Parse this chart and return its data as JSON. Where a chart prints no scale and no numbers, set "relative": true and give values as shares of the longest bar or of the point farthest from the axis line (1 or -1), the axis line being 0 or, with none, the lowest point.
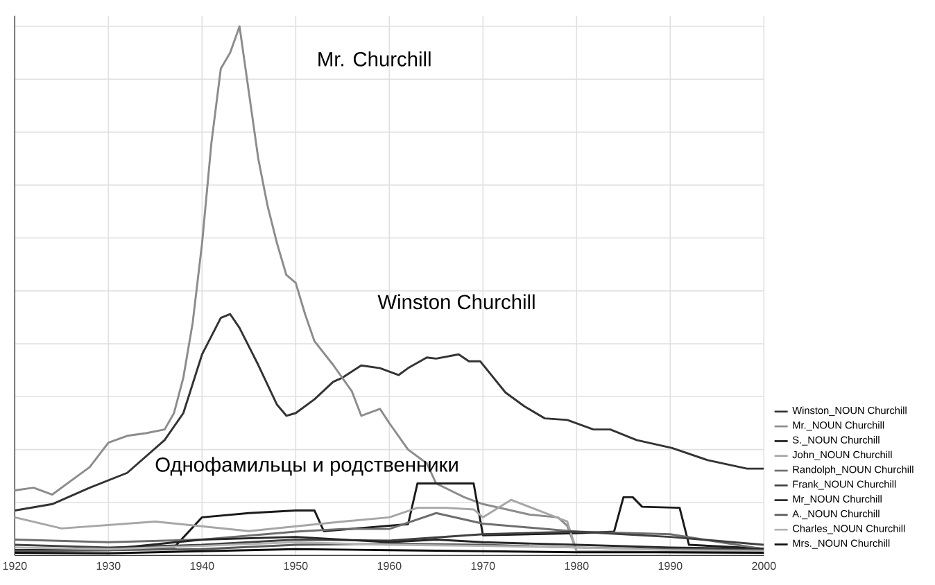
{
  "chart_data": {
    "type": "line",
    "relative": true,
    "xlim": [
      1920,
      2000
    ],
    "xticks": [
      1920,
      1930,
      1940,
      1950,
      1960,
      1970,
      1980,
      1990,
      2000
    ],
    "grid": true,
    "legend": "right",
    "tick_labels": "x",
    "line_style": "solid",
    "annotations": [
      "Mr. Churchill",
      "Winston Churchill",
      "Однофамильцы и родственники"
    ],
    "series": [
      {
        "name": "Winston_NOUN Churchill",
        "color": "#333333",
        "x": [
          1920,
          1924,
          1928,
          1932,
          1936,
          1938,
          1940,
          1942,
          1943,
          1944,
          1946,
          1948,
          1949,
          1950,
          1952,
          1954,
          1955,
          1957,
          1959,
          1961,
          1962,
          1964,
          1965,
          1967.4,
          1968.5,
          1969.7,
          1972.4,
          1974.4,
          1976.6,
          1979,
          1981.8,
          1983.6,
          1986.4,
          1990.2,
          1994,
          1998.2,
          2000
        ],
        "values": [
          0.085,
          0.097,
          0.128,
          0.156,
          0.218,
          0.269,
          0.38,
          0.449,
          0.456,
          0.43,
          0.36,
          0.285,
          0.264,
          0.269,
          0.295,
          0.328,
          0.336,
          0.359,
          0.354,
          0.341,
          0.354,
          0.374,
          0.372,
          0.38,
          0.367,
          0.367,
          0.308,
          0.282,
          0.259,
          0.256,
          0.238,
          0.238,
          0.218,
          0.203,
          0.18,
          0.164,
          0.164
        ]
      },
      {
        "name": "Mr._NOUN Churchill",
        "color": "#8c8c8c",
        "x": [
          1920,
          1922,
          1924,
          1926,
          1928,
          1930,
          1932,
          1934,
          1936,
          1937,
          1938,
          1939,
          1940,
          1941,
          1942,
          1943,
          1944,
          1945,
          1946,
          1947,
          1948,
          1949,
          1950,
          1951,
          1952,
          1954,
          1956,
          1957,
          1959,
          1960,
          1962,
          1964,
          1965,
          1968,
          1970,
          1975,
          1978,
          1979,
          1980,
          1990,
          2000
        ],
        "values": [
          0.123,
          0.128,
          0.115,
          0.141,
          0.167,
          0.213,
          0.226,
          0.231,
          0.238,
          0.269,
          0.336,
          0.44,
          0.59,
          0.78,
          0.92,
          0.95,
          1,
          0.875,
          0.75,
          0.66,
          0.59,
          0.53,
          0.515,
          0.456,
          0.405,
          0.36,
          0.31,
          0.264,
          0.277,
          0.25,
          0.2,
          0.174,
          0.136,
          0.11,
          0.097,
          0.077,
          0.072,
          0.056,
          0.008,
          0.006,
          0.005
        ]
      },
      {
        "name": "S._NOUN Churchill",
        "color": "#1a1a1a",
        "x": [
          1920,
          1930,
          1937,
          1940,
          1945,
          1950,
          1952,
          1953,
          1962,
          1963,
          1969,
          1970,
          1980,
          1984,
          1985,
          1986,
          1987,
          1991,
          1992,
          2000
        ],
        "values": [
          0.01,
          0.01,
          0.015,
          0.072,
          0.08,
          0.085,
          0.085,
          0.046,
          0.059,
          0.136,
          0.136,
          0.038,
          0.042,
          0.045,
          0.11,
          0.11,
          0.092,
          0.09,
          0.02,
          0.013
        ]
      },
      {
        "name": "John_NOUN Churchill",
        "color": "#a6a6a6",
        "x": [
          1920,
          1925,
          1935,
          1945,
          1955,
          1960,
          1963,
          1966,
          1969,
          1970,
          1973,
          1979,
          1980,
          1990,
          2000
        ],
        "values": [
          0.072,
          0.051,
          0.064,
          0.046,
          0.064,
          0.072,
          0.09,
          0.09,
          0.087,
          0.072,
          0.105,
          0.064,
          0.008,
          0.006,
          0.005
        ]
      },
      {
        "name": "Randolph_NOUN Churchill",
        "color": "#6e6e6e",
        "x": [
          1920,
          1930,
          1940,
          1950,
          1955,
          1960,
          1965,
          1970,
          1980,
          1990,
          2000
        ],
        "values": [
          0.03,
          0.025,
          0.03,
          0.045,
          0.05,
          0.05,
          0.08,
          0.06,
          0.045,
          0.04,
          0.012
        ]
      },
      {
        "name": "Frank_NOUN Churchill",
        "color": "#404040",
        "x": [
          1920,
          1930,
          1940,
          1950,
          1960,
          1970,
          1980,
          1990,
          2000
        ],
        "values": [
          0.02,
          0.015,
          0.02,
          0.03,
          0.028,
          0.04,
          0.045,
          0.035,
          0.02
        ]
      },
      {
        "name": "Mr_NOUN Churchill",
        "color": "#262626",
        "x": [
          1920,
          1930,
          1940,
          1950,
          1960,
          1965,
          1970,
          1980,
          1990,
          2000
        ],
        "values": [
          0.01,
          0.012,
          0.03,
          0.035,
          0.025,
          0.03,
          0.025,
          0.02,
          0.015,
          0.012
        ]
      },
      {
        "name": "A._NOUN Churchill",
        "color": "#595959",
        "x": [
          1920,
          1930,
          1940,
          1950,
          1960,
          1970,
          1980,
          1990,
          2000
        ],
        "values": [
          0.008,
          0.01,
          0.012,
          0.02,
          0.022,
          0.02,
          0.015,
          0.012,
          0.01
        ]
      },
      {
        "name": "Charles_NOUN Churchill",
        "color": "#b3b3b3",
        "x": [
          1920,
          1930,
          1940,
          1950,
          1960,
          1970,
          1980,
          1990,
          2000
        ],
        "values": [
          0.015,
          0.012,
          0.018,
          0.025,
          0.02,
          0.018,
          0.015,
          0.01,
          0.008
        ]
      },
      {
        "name": "Mrs._NOUN Churchill",
        "color": "#0d0d0d",
        "x": [
          1920,
          1930,
          1940,
          1950,
          1960,
          1970,
          1980,
          1990,
          2000
        ],
        "values": [
          0.005,
          0.004,
          0.008,
          0.012,
          0.01,
          0.008,
          0.006,
          0.006,
          0.005
        ]
      }
    ]
  }
}
